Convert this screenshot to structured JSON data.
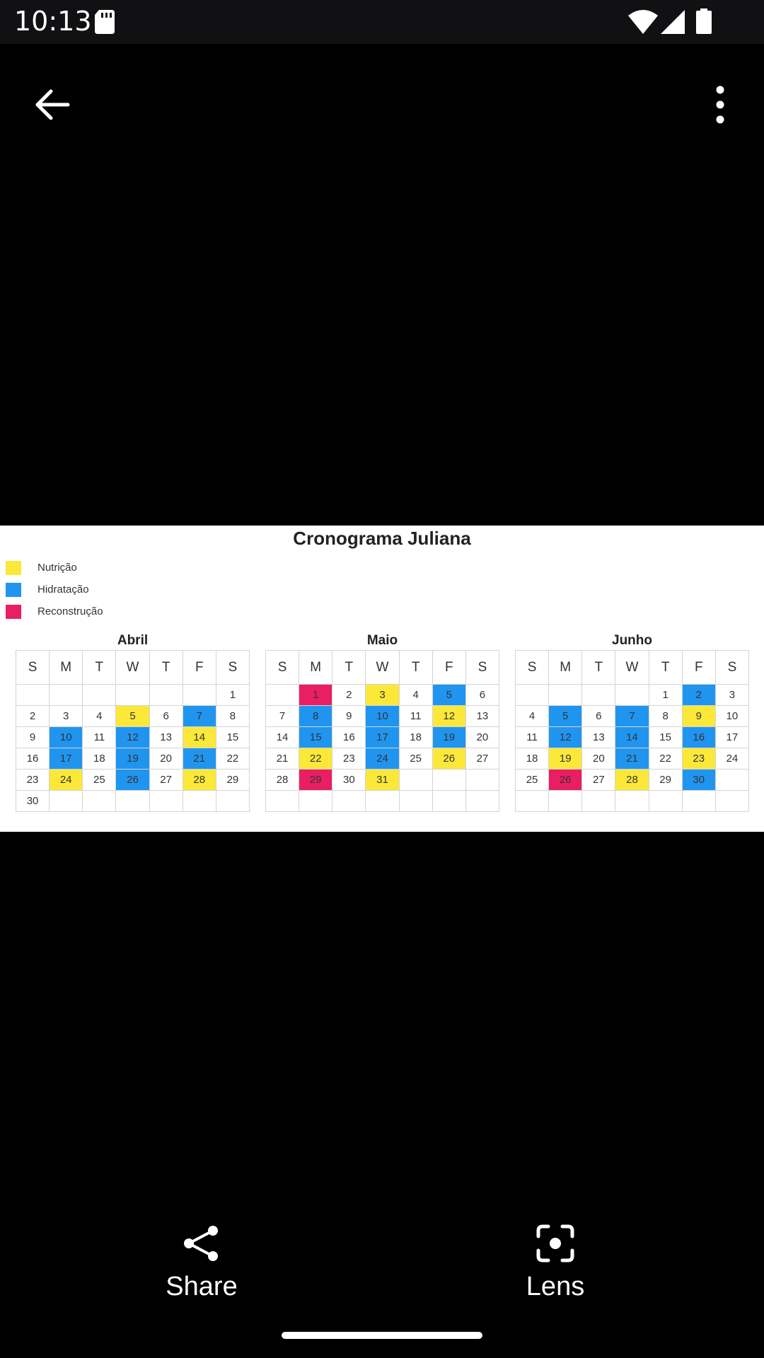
{
  "status_bar": {
    "time": "10:13",
    "icons": [
      "sd-card-icon",
      "wifi-icon",
      "signal-icon",
      "battery-icon"
    ]
  },
  "toolbar": {
    "back_icon": "arrow-left-icon",
    "more_icon": "more-vert-icon"
  },
  "image": {
    "title": "Cronograma Juliana",
    "legend": [
      {
        "label": "Nutrição",
        "color": "#fbe839",
        "key": "n"
      },
      {
        "label": "Hidratação",
        "color": "#2095f0",
        "key": "h"
      },
      {
        "label": "Reconstrução",
        "color": "#e91e63",
        "key": "r"
      }
    ],
    "weekdays": [
      "S",
      "M",
      "T",
      "W",
      "T",
      "F",
      "S"
    ],
    "months": [
      {
        "name": "Abril",
        "weeks": [
          [
            "",
            "",
            "",
            "",
            "",
            "",
            "1"
          ],
          [
            "2",
            "3",
            "4",
            "5",
            "6",
            "7",
            "8"
          ],
          [
            "9",
            "10",
            "11",
            "12",
            "13",
            "14",
            "15"
          ],
          [
            "16",
            "17",
            "18",
            "19",
            "20",
            "21",
            "22"
          ],
          [
            "23",
            "24",
            "25",
            "26",
            "27",
            "28",
            "29"
          ],
          [
            "30",
            "",
            "",
            "",
            "",
            "",
            ""
          ]
        ],
        "highlights": {
          "5": "n",
          "7": "h",
          "10": "h",
          "12": "h",
          "14": "n",
          "17": "h",
          "19": "h",
          "21": "h",
          "24": "n",
          "26": "h",
          "28": "n"
        }
      },
      {
        "name": "Maio",
        "weeks": [
          [
            "",
            "1",
            "2",
            "3",
            "4",
            "5",
            "6"
          ],
          [
            "7",
            "8",
            "9",
            "10",
            "11",
            "12",
            "13"
          ],
          [
            "14",
            "15",
            "16",
            "17",
            "18",
            "19",
            "20"
          ],
          [
            "21",
            "22",
            "23",
            "24",
            "25",
            "26",
            "27"
          ],
          [
            "28",
            "29",
            "30",
            "31",
            "",
            "",
            ""
          ],
          [
            "",
            "",
            "",
            "",
            "",
            "",
            ""
          ]
        ],
        "highlights": {
          "1": "r",
          "3": "n",
          "5": "h",
          "8": "h",
          "10": "h",
          "12": "n",
          "15": "h",
          "17": "h",
          "19": "h",
          "22": "n",
          "24": "h",
          "26": "n",
          "29": "r",
          "31": "n"
        }
      },
      {
        "name": "Junho",
        "weeks": [
          [
            "",
            "",
            "",
            "",
            "1",
            "2",
            "3"
          ],
          [
            "4",
            "5",
            "6",
            "7",
            "8",
            "9",
            "10"
          ],
          [
            "11",
            "12",
            "13",
            "14",
            "15",
            "16",
            "17"
          ],
          [
            "18",
            "19",
            "20",
            "21",
            "22",
            "23",
            "24"
          ],
          [
            "25",
            "26",
            "27",
            "28",
            "29",
            "30",
            ""
          ],
          [
            "",
            "",
            "",
            "",
            "",
            "",
            ""
          ]
        ],
        "highlights": {
          "2": "h",
          "5": "h",
          "7": "h",
          "9": "n",
          "12": "h",
          "14": "h",
          "16": "h",
          "19": "n",
          "21": "h",
          "23": "n",
          "26": "r",
          "28": "n",
          "30": "h"
        }
      }
    ]
  },
  "bottom_actions": {
    "share_label": "Share",
    "share_icon": "share-icon",
    "lens_label": "Lens",
    "lens_icon": "lens-icon"
  }
}
